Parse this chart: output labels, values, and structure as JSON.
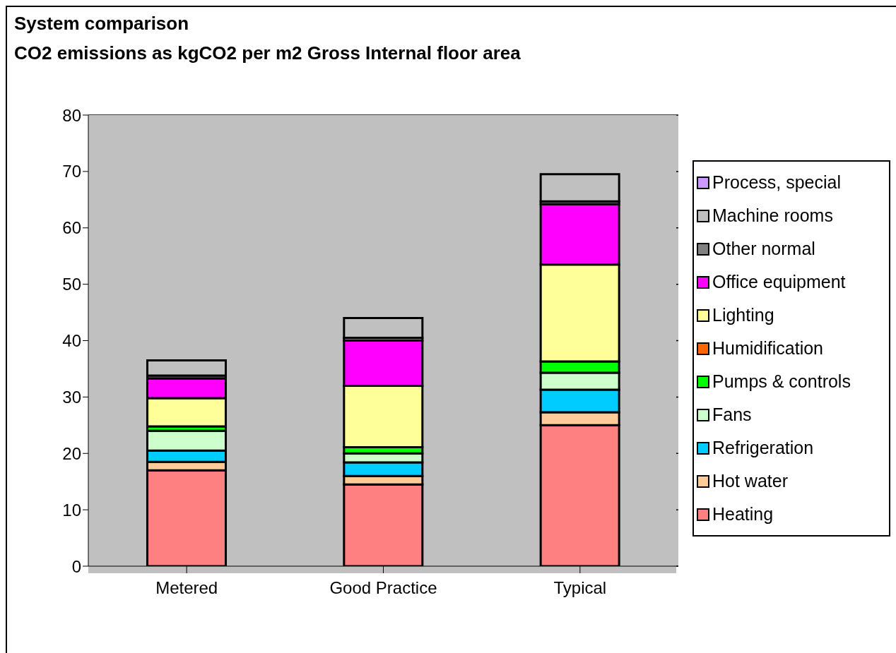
{
  "chart_data": {
    "type": "bar",
    "title": "System comparison",
    "subtitle": "CO2 emissions as kgCO2 per m2 Gross Internal floor area",
    "categories": [
      "Metered",
      "Good Practice",
      "Typical"
    ],
    "stacked": true,
    "ylim": [
      0,
      80
    ],
    "yticks": [
      0,
      10,
      20,
      30,
      40,
      50,
      60,
      70,
      80
    ],
    "grid": "y",
    "legend": "right",
    "series": [
      {
        "name": "Heating",
        "color": "#ff8080",
        "values": [
          17,
          14.5,
          25
        ]
      },
      {
        "name": "Hot water",
        "color": "#ffcc99",
        "values": [
          1.5,
          1.5,
          2.3
        ]
      },
      {
        "name": "Refrigeration",
        "color": "#00ccff",
        "values": [
          2,
          2.4,
          4
        ]
      },
      {
        "name": "Fans",
        "color": "#ccffcc",
        "values": [
          3.5,
          1.6,
          3
        ]
      },
      {
        "name": "Pumps & controls",
        "color": "#00ff00",
        "values": [
          0.8,
          1.1,
          2
        ]
      },
      {
        "name": "Humidification",
        "color": "#ff6600",
        "values": [
          0,
          0,
          0
        ]
      },
      {
        "name": "Lighting",
        "color": "#ffff99",
        "values": [
          5,
          10.9,
          17.2
        ]
      },
      {
        "name": "Office equipment",
        "color": "#ff00ff",
        "values": [
          3.5,
          8,
          10.7
        ]
      },
      {
        "name": "Other normal",
        "color": "#808080",
        "values": [
          0.5,
          0.5,
          0.5
        ]
      },
      {
        "name": "Machine rooms",
        "color": "#c0c0c0",
        "values": [
          2.7,
          3.5,
          4.8
        ]
      },
      {
        "name": "Process, special",
        "color": "#cc99ff",
        "values": [
          0,
          0,
          0
        ]
      }
    ]
  }
}
